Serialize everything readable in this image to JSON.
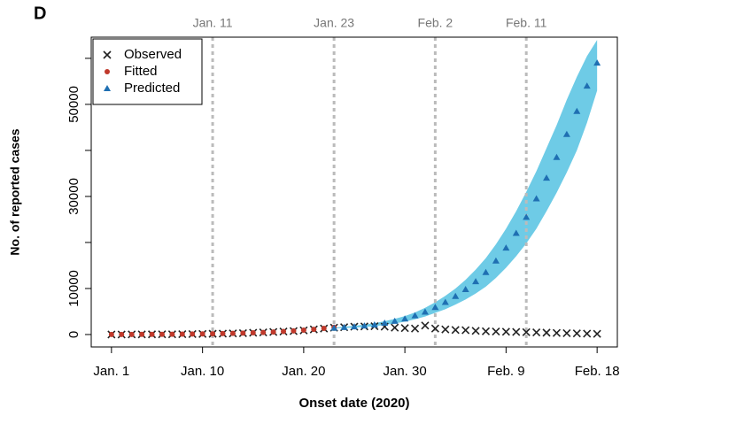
{
  "chart_data": {
    "type": "scatter",
    "panel": "D",
    "xlabel": "Onset date (2020)",
    "ylabel": "No. of reported cases",
    "x": [
      1,
      2,
      3,
      4,
      5,
      6,
      7,
      8,
      9,
      10,
      11,
      12,
      13,
      14,
      15,
      16,
      17,
      18,
      19,
      20,
      21,
      22,
      23,
      24,
      25,
      26,
      27,
      28,
      29,
      30,
      31,
      32,
      33,
      34,
      35,
      36,
      37,
      38,
      39,
      40,
      41,
      42,
      43,
      44,
      45,
      46,
      47,
      48,
      49
    ],
    "xlim": [
      -1,
      51
    ],
    "xticks": [
      {
        "value": 1,
        "label": "Jan. 1"
      },
      {
        "value": 10,
        "label": "Jan. 10"
      },
      {
        "value": 20,
        "label": "Jan. 20"
      },
      {
        "value": 30,
        "label": "Jan. 30"
      },
      {
        "value": 40,
        "label": "Feb. 9"
      },
      {
        "value": 49,
        "label": "Feb. 18"
      }
    ],
    "ylim": [
      -2700,
      64600
    ],
    "yticks": [
      0,
      10000,
      30000,
      50000
    ],
    "yticks_unlabeled": [
      20000,
      40000,
      60000
    ],
    "vlines": [
      {
        "value": 11,
        "label": "Jan. 11"
      },
      {
        "value": 23,
        "label": "Jan. 23"
      },
      {
        "value": 33,
        "label": "Feb. 2"
      },
      {
        "value": 42,
        "label": "Feb. 11"
      }
    ],
    "legend": "top-left",
    "series": [
      {
        "name": "Observed",
        "color": "#222222",
        "marker": "x",
        "values": [
          10,
          15,
          20,
          30,
          40,
          50,
          60,
          80,
          100,
          130,
          160,
          200,
          250,
          300,
          380,
          450,
          550,
          650,
          750,
          900,
          1100,
          1300,
          1500,
          1600,
          1700,
          1750,
          1800,
          1700,
          1500,
          1400,
          1300,
          1950,
          1300,
          1100,
          1000,
          950,
          800,
          700,
          650,
          600,
          550,
          500,
          450,
          400,
          350,
          300,
          250,
          200,
          150
        ]
      },
      {
        "name": "Fitted",
        "color": "#c0392b",
        "marker": "circle",
        "values": [
          12,
          16,
          22,
          30,
          40,
          52,
          66,
          84,
          105,
          130,
          160,
          200,
          245,
          300,
          370,
          450,
          550,
          660,
          790,
          950,
          1130,
          1330,
          1550,
          null,
          null,
          null,
          null,
          null,
          null,
          null,
          null,
          null,
          null,
          null,
          null,
          null,
          null,
          null,
          null,
          null,
          null,
          null,
          null,
          null,
          null,
          null,
          null,
          null,
          null
        ]
      },
      {
        "name": "Predicted",
        "color": "#1f6fb2",
        "band_color": "#6ecbe6",
        "marker": "triangle",
        "values": [
          null,
          null,
          null,
          null,
          null,
          null,
          null,
          null,
          null,
          null,
          null,
          null,
          null,
          null,
          null,
          null,
          null,
          null,
          null,
          null,
          null,
          null,
          1400,
          1550,
          1700,
          1900,
          2100,
          2500,
          2900,
          3400,
          4100,
          4900,
          5900,
          7000,
          8300,
          9800,
          11500,
          13500,
          16000,
          18800,
          22000,
          25500,
          29500,
          34000,
          38500,
          43500,
          48500,
          54000,
          59000
        ],
        "lower": [
          null,
          null,
          null,
          null,
          null,
          null,
          null,
          null,
          null,
          null,
          null,
          null,
          null,
          null,
          null,
          null,
          null,
          null,
          null,
          null,
          null,
          null,
          1300,
          1400,
          1500,
          1650,
          1800,
          2100,
          2400,
          2800,
          3300,
          3900,
          4700,
          5500,
          6500,
          7600,
          8900,
          10400,
          12300,
          14500,
          17000,
          19800,
          23000,
          26800,
          30800,
          35200,
          40000,
          46000,
          53000
        ],
        "upper": [
          null,
          null,
          null,
          null,
          null,
          null,
          null,
          null,
          null,
          null,
          null,
          null,
          null,
          null,
          null,
          null,
          null,
          null,
          null,
          null,
          null,
          null,
          1500,
          1700,
          1900,
          2150,
          2450,
          2900,
          3400,
          4000,
          4800,
          5800,
          7000,
          8400,
          10000,
          11900,
          14100,
          16600,
          19600,
          23000,
          26800,
          31000,
          35500,
          40500,
          45500,
          51000,
          56000,
          60500,
          64000
        ]
      }
    ]
  }
}
